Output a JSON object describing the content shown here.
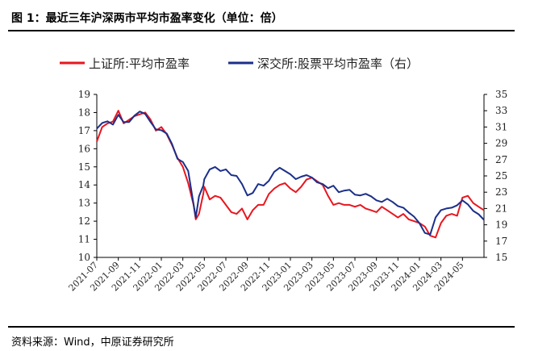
{
  "header": {
    "title": "图 1：最近三年沪深两市平均市盈率变化（单位：倍）"
  },
  "footer": {
    "source": "资料来源：Wind，中原证券研究所"
  },
  "chart_data": {
    "type": "line",
    "title": "",
    "xlabel": "",
    "ylabel": "",
    "ylabel_right": "",
    "ylim": [
      10,
      19
    ],
    "ylim_right": [
      15,
      35
    ],
    "y_ticks": [
      10,
      11,
      12,
      13,
      14,
      15,
      16,
      17,
      18,
      19
    ],
    "y_ticks_right": [
      15,
      17,
      19,
      21,
      23,
      25,
      27,
      29,
      31,
      33,
      35
    ],
    "grid": false,
    "legend_position": "top",
    "x_ticks": [
      "2021-07",
      "2021-09",
      "2021-11",
      "2022-01",
      "2022-03",
      "2022-05",
      "2022-07",
      "2022-09",
      "2022-11",
      "2023-01",
      "2023-03",
      "2023-05",
      "2023-07",
      "2023-09",
      "2023-11",
      "2024-01",
      "2024-03",
      "2024-05"
    ],
    "x": [
      0,
      0.5,
      1,
      1.5,
      2,
      2.5,
      3,
      3.5,
      4,
      4.5,
      5,
      5.5,
      6,
      6.5,
      7,
      7.5,
      8,
      8.5,
      9,
      9.2,
      9.5,
      9.9,
      10,
      10.5,
      11,
      11.5,
      12,
      12.5,
      13,
      13.5,
      14,
      14.5,
      15,
      15.5,
      16,
      16.5,
      17,
      17.5,
      18,
      18.5,
      19,
      19.5,
      20,
      20.5,
      21,
      21.5,
      22,
      22.5,
      23,
      23.5,
      24,
      24.5,
      25,
      25.5,
      26,
      26.5,
      27,
      27.5,
      28,
      28.5,
      29,
      29.5,
      30,
      30.5,
      31,
      31.5,
      32,
      32.5,
      33,
      33.5,
      34,
      34.5,
      35,
      35.5,
      36
    ],
    "series": [
      {
        "name": "上证所:平均市盈率",
        "axis": "left",
        "color": "#e8161e",
        "values": [
          16.4,
          17.2,
          17.4,
          17.5,
          18.1,
          17.4,
          17.6,
          17.8,
          17.9,
          18.0,
          17.6,
          17.0,
          17.2,
          16.8,
          16.2,
          15.5,
          15.0,
          14.1,
          12.9,
          12.1,
          12.4,
          13.5,
          13.9,
          13.2,
          13.4,
          13.3,
          12.9,
          12.5,
          12.4,
          12.7,
          12.1,
          12.6,
          12.9,
          12.9,
          13.5,
          13.8,
          14.0,
          14.1,
          13.8,
          13.6,
          13.9,
          14.3,
          14.4,
          14.2,
          14.0,
          13.4,
          12.9,
          13.0,
          12.9,
          12.9,
          12.8,
          12.9,
          12.7,
          12.6,
          12.5,
          12.8,
          12.6,
          12.4,
          12.2,
          12.4,
          12.1,
          12.0,
          11.9,
          11.7,
          11.2,
          11.1,
          11.9,
          12.3,
          12.4,
          12.3,
          13.3,
          13.4,
          13.0,
          12.8,
          12.6
        ]
      },
      {
        "name": "深交所:股票平均市盈率（右）",
        "axis": "right",
        "color": "#1b2f8a",
        "values": [
          30.8,
          31.5,
          31.7,
          31.3,
          32.5,
          31.6,
          31.6,
          32.4,
          32.9,
          32.6,
          31.6,
          30.7,
          30.6,
          30.2,
          28.9,
          27.1,
          26.7,
          25.6,
          21.5,
          19.9,
          22.5,
          23.8,
          24.6,
          25.8,
          26.1,
          25.6,
          25.8,
          25.1,
          25.0,
          24.0,
          22.6,
          22.9,
          24.0,
          23.8,
          24.4,
          25.5,
          26.0,
          25.6,
          25.2,
          24.6,
          24.9,
          25.1,
          24.8,
          24.2,
          24.0,
          23.5,
          23.8,
          23.0,
          23.2,
          23.3,
          22.7,
          22.6,
          22.8,
          22.5,
          22.0,
          21.8,
          22.2,
          21.8,
          21.3,
          21.1,
          20.5,
          20.0,
          19.2,
          18.0,
          17.8,
          19.9,
          20.8,
          21.0,
          21.1,
          21.4,
          22.0,
          21.5,
          20.7,
          20.3,
          19.6
        ]
      }
    ]
  }
}
